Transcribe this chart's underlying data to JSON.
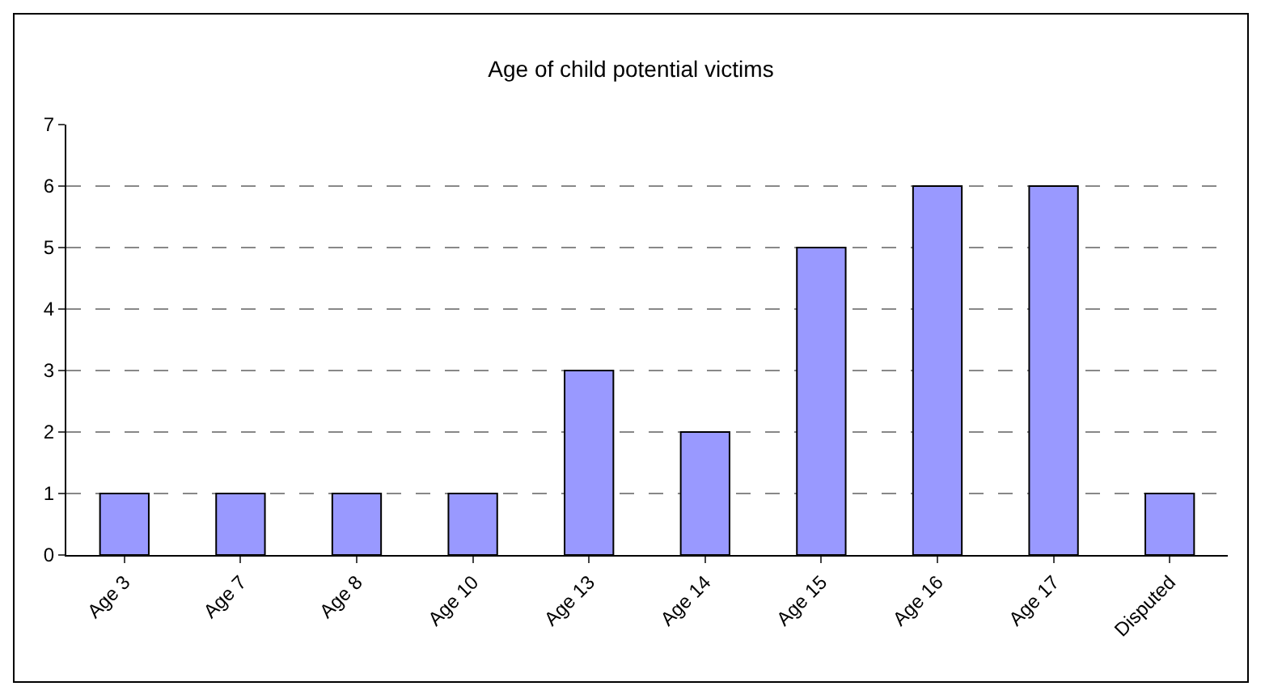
{
  "chart_data": {
    "type": "bar",
    "title": "Age of child potential victims",
    "categories": [
      "Age 3",
      "Age 7",
      "Age 8",
      "Age 10",
      "Age 13",
      "Age 14",
      "Age 15",
      "Age 16",
      "Age 17",
      "Disputed"
    ],
    "values": [
      1,
      1,
      1,
      1,
      3,
      2,
      5,
      6,
      6,
      1
    ],
    "color": "#9999ff",
    "ylim": [
      0,
      7
    ],
    "yticks": [
      0,
      1,
      2,
      3,
      4,
      5,
      6,
      7
    ],
    "grid": "y"
  }
}
